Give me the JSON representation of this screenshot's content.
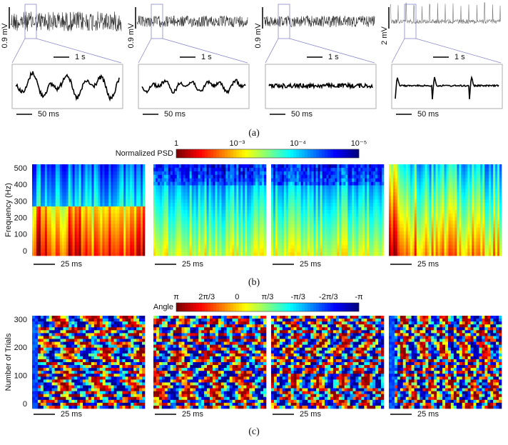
{
  "panel_a": {
    "label": "(a)",
    "traces": [
      {
        "amplitude_scale": "0.9 mV",
        "time_scale": "1 s",
        "zoom_scale": "50 ms"
      },
      {
        "amplitude_scale": "0.9 mV",
        "time_scale": "1 s",
        "zoom_scale": "50 ms"
      },
      {
        "amplitude_scale": "0.9 mV",
        "time_scale": "1 s",
        "zoom_scale": "50 ms"
      },
      {
        "amplitude_scale": "2 mV",
        "time_scale": "1 s",
        "zoom_scale": "50 ms"
      }
    ]
  },
  "panel_b": {
    "label": "(b)",
    "colorbar_title": "Normalized PSD",
    "colorbar_ticks": [
      "1",
      "10⁻³",
      "10⁻⁴",
      "10⁻⁵"
    ],
    "y_axis_label": "Frequency (Hz)",
    "y_ticks": [
      0,
      100,
      200,
      300,
      400,
      500
    ],
    "time_scales": [
      "25 ms",
      "25 ms",
      "25 ms",
      "25 ms"
    ]
  },
  "panel_c": {
    "label": "(c)",
    "colorbar_title": "Angle",
    "colorbar_ticks": [
      "π",
      "2π/3",
      "0",
      "π/3",
      "-π/3",
      "-2π/3",
      "-π"
    ],
    "y_axis_label": "Number of Trials",
    "y_ticks": [
      0,
      100,
      200,
      300
    ],
    "time_scales": [
      "25 ms",
      "25 ms",
      "25 ms",
      "25 ms"
    ]
  }
}
